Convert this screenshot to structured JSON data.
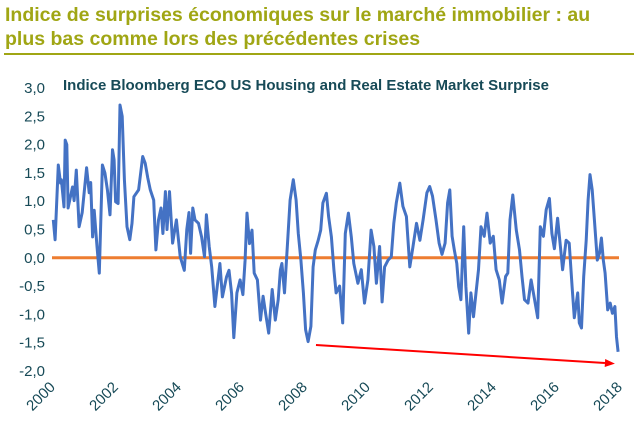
{
  "header": {
    "title": "Indice de surprises économiques sur le marché immobilier : au plus bas comme lors des précédentes crises"
  },
  "colors": {
    "title": "#a0a614",
    "series": "#4472c4",
    "zero_line": "#ed7d31",
    "arrow": "#ff0000",
    "axis_text": "#174a57"
  },
  "chart_data": {
    "type": "line",
    "title": "Indice Bloomberg ECO US Housing and Real Estate Market Surprise",
    "xlabel": "",
    "ylabel": "",
    "xlim": [
      2000,
      2018
    ],
    "ylim": [
      -2.0,
      3.0
    ],
    "grid": false,
    "legend": "none",
    "x_ticks": [
      "2000",
      "2002",
      "2004",
      "2006",
      "2008",
      "2010",
      "2012",
      "2014",
      "2016",
      "2018"
    ],
    "y_ticks": [
      "3,0",
      "2,5",
      "2,0",
      "1,5",
      "1,0",
      "0,5",
      "0,0",
      "-0,5",
      "-1,0",
      "-1,5",
      "-2,0"
    ],
    "reference_line": {
      "y": 0.0
    },
    "annotation_arrow": {
      "from": [
        2008.38,
        -1.54
      ],
      "to": [
        2017.87,
        -1.87
      ]
    },
    "series": [
      {
        "x": [
          2000.04,
          2000.1,
          2000.2,
          2000.27,
          2000.3,
          2000.38,
          2000.42,
          2000.47,
          2000.51,
          2000.65,
          2000.7,
          2000.77,
          2000.86,
          2000.96,
          2001.1,
          2001.18,
          2001.23,
          2001.29,
          2001.34,
          2001.43,
          2001.5,
          2001.6,
          2001.68,
          2001.76,
          2001.84,
          2001.92,
          2001.97,
          2002.02,
          2002.1,
          2002.16,
          2002.23,
          2002.3,
          2002.38,
          2002.47,
          2002.54,
          2002.6,
          2002.75,
          2002.88,
          2002.96,
          2003.04,
          2003.12,
          2003.23,
          2003.3,
          2003.38,
          2003.46,
          2003.52,
          2003.6,
          2003.65,
          2003.73,
          2003.83,
          2003.95,
          2004.07,
          2004.2,
          2004.28,
          2004.35,
          2004.4,
          2004.47,
          2004.54,
          2004.65,
          2004.75,
          2004.84,
          2004.9,
          2004.99,
          2005.07,
          2005.17,
          2005.33,
          2005.41,
          2005.54,
          2005.62,
          2005.7,
          2005.77,
          2005.87,
          2005.97,
          2006.06,
          2006.13,
          2006.19,
          2006.27,
          2006.35,
          2006.42,
          2006.52,
          2006.62,
          2006.7,
          2006.78,
          2006.88,
          2006.99,
          2007.09,
          2007.18,
          2007.25,
          2007.3,
          2007.38,
          2007.49,
          2007.56,
          2007.66,
          2007.75,
          2007.82,
          2007.9,
          2007.98,
          2008.05,
          2008.13,
          2008.22,
          2008.29,
          2008.36,
          2008.45,
          2008.53,
          2008.6,
          2008.71,
          2008.78,
          2008.87,
          2008.95,
          2009.02,
          2009.13,
          2009.23,
          2009.31,
          2009.41,
          2009.5,
          2009.58,
          2009.71,
          2009.82,
          2009.92,
          2010.03,
          2010.13,
          2010.22,
          2010.3,
          2010.4,
          2010.48,
          2010.56,
          2010.67,
          2010.77,
          2010.85,
          2010.93,
          2011.04,
          2011.14,
          2011.25,
          2011.36,
          2011.46,
          2011.57,
          2011.68,
          2011.78,
          2011.9,
          2011.99,
          2012.08,
          2012.19,
          2012.29,
          2012.38,
          2012.48,
          2012.56,
          2012.63,
          2012.7,
          2012.77,
          2012.85,
          2012.91,
          2012.98,
          2013.07,
          2013.14,
          2013.23,
          2013.3,
          2013.38,
          2013.46,
          2013.54,
          2013.62,
          2013.72,
          2013.81,
          2013.91,
          2014.01,
          2014.1,
          2014.2,
          2014.29,
          2014.4,
          2014.47,
          2014.54,
          2014.63,
          2014.74,
          2014.84,
          2014.92,
          2015.0,
          2015.11,
          2015.21,
          2015.32,
          2015.42,
          2015.5,
          2015.6,
          2015.69,
          2015.79,
          2015.87,
          2015.95,
          2016.05,
          2016.14,
          2016.21,
          2016.32,
          2016.42,
          2016.51,
          2016.58,
          2016.69,
          2016.74,
          2016.81,
          2016.88,
          2016.96,
          2017.02,
          2017.08,
          2017.15,
          2017.22,
          2017.31,
          2017.38,
          2017.44,
          2017.5,
          2017.56,
          2017.64,
          2017.72,
          2017.79,
          2017.87,
          2017.92,
          2017.97
        ],
        "y": [
          0.67,
          0.32,
          1.64,
          1.32,
          1.38,
          0.9,
          2.08,
          2.0,
          0.88,
          1.25,
          1.01,
          1.55,
          0.55,
          0.8,
          1.59,
          1.15,
          1.33,
          0.37,
          0.84,
          0.2,
          -0.27,
          1.64,
          1.5,
          1.2,
          0.76,
          1.91,
          1.73,
          0.99,
          0.96,
          2.7,
          2.5,
          1.38,
          0.55,
          0.32,
          0.61,
          1.08,
          1.2,
          1.79,
          1.67,
          1.41,
          1.2,
          1.02,
          0.14,
          0.67,
          0.88,
          0.43,
          1.17,
          0.5,
          1.17,
          0.26,
          0.67,
          0.02,
          -0.22,
          0.5,
          0.8,
          0.08,
          0.88,
          0.67,
          0.61,
          0.37,
          0.02,
          0.76,
          0.2,
          -0.16,
          -0.86,
          -0.1,
          -0.69,
          -0.34,
          -0.22,
          -0.63,
          -1.41,
          -0.62,
          -0.39,
          -0.65,
          -0.04,
          0.79,
          0.25,
          0.49,
          -0.27,
          -0.39,
          -1.1,
          -0.68,
          -0.98,
          -1.33,
          -0.56,
          -1.1,
          -0.74,
          -0.21,
          -0.1,
          -0.62,
          0.37,
          1.02,
          1.38,
          1.02,
          0.43,
          -0.04,
          -0.62,
          -1.27,
          -1.48,
          -1.21,
          -0.16,
          0.14,
          0.31,
          0.49,
          0.97,
          1.14,
          0.73,
          0.37,
          -0.21,
          -0.62,
          -0.5,
          -1.15,
          0.43,
          0.79,
          0.37,
          -0.1,
          -0.45,
          -0.21,
          -0.8,
          -0.39,
          0.49,
          0.2,
          -0.45,
          0.2,
          -0.78,
          -0.16,
          -0.04,
          0.02,
          0.61,
          0.97,
          1.32,
          0.91,
          0.73,
          -0.16,
          0.2,
          0.61,
          0.31,
          0.67,
          1.15,
          1.26,
          1.09,
          0.67,
          0.26,
          0.06,
          0.26,
          0.97,
          1.2,
          0.38,
          0.14,
          -0.1,
          -0.51,
          -0.74,
          0.55,
          -0.51,
          -1.33,
          -0.62,
          -1.04,
          -0.62,
          -0.21,
          0.55,
          0.38,
          0.79,
          0.26,
          0.38,
          -0.21,
          -0.39,
          -0.8,
          -0.33,
          -0.27,
          0.67,
          1.11,
          0.49,
          0.14,
          -0.33,
          -0.74,
          -0.8,
          -0.39,
          -0.74,
          -1.06,
          0.55,
          0.38,
          0.85,
          1.05,
          0.43,
          0.16,
          0.7,
          0.2,
          -0.21,
          0.31,
          0.26,
          -0.51,
          -1.06,
          -0.62,
          -1.15,
          -1.24,
          -0.33,
          0.31,
          1.02,
          1.47,
          1.2,
          0.67,
          -0.04,
          0.08,
          0.35,
          -0.04,
          -0.27,
          -0.92,
          -0.8,
          -0.98,
          -0.86,
          -1.4,
          -1.66
        ]
      }
    ]
  }
}
